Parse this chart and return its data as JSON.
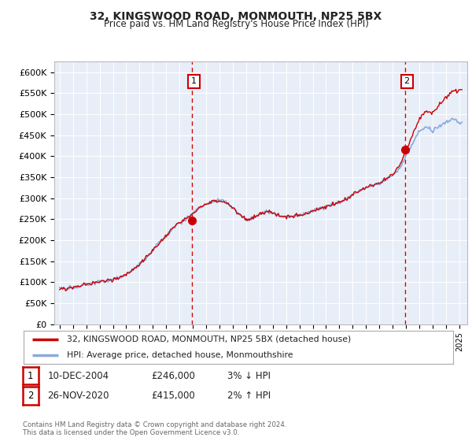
{
  "title1": "32, KINGSWOOD ROAD, MONMOUTH, NP25 5BX",
  "title2": "Price paid vs. HM Land Registry's House Price Index (HPI)",
  "bg_color": "#e8eef8",
  "ylim": [
    0,
    625000
  ],
  "yticks": [
    0,
    50000,
    100000,
    150000,
    200000,
    250000,
    300000,
    350000,
    400000,
    450000,
    500000,
    550000,
    600000
  ],
  "ytick_labels": [
    "£0",
    "£50K",
    "£100K",
    "£150K",
    "£200K",
    "£250K",
    "£300K",
    "£350K",
    "£400K",
    "£450K",
    "£500K",
    "£550K",
    "£600K"
  ],
  "sale1_date": 2004.94,
  "sale1_price": 246000,
  "sale2_date": 2020.91,
  "sale2_price": 415000,
  "legend_line1": "32, KINGSWOOD ROAD, MONMOUTH, NP25 5BX (detached house)",
  "legend_line2": "HPI: Average price, detached house, Monmouthshire",
  "annotation1_label": "1",
  "annotation1_date": "10-DEC-2004",
  "annotation1_price": "£246,000",
  "annotation1_hpi": "3% ↓ HPI",
  "annotation2_label": "2",
  "annotation2_date": "26-NOV-2020",
  "annotation2_price": "£415,000",
  "annotation2_hpi": "2% ↑ HPI",
  "footer": "Contains HM Land Registry data © Crown copyright and database right 2024.\nThis data is licensed under the Open Government Licence v3.0.",
  "price_line_color": "#cc0000",
  "hpi_line_color": "#88aadd",
  "sale_marker_color": "#cc0000",
  "vline_color": "#cc0000",
  "hpi_curve_points": [
    [
      1995.0,
      85000
    ],
    [
      1995.5,
      83000
    ],
    [
      1996.0,
      88000
    ],
    [
      1996.5,
      90000
    ],
    [
      1997.0,
      95000
    ],
    [
      1997.5,
      98000
    ],
    [
      1998.0,
      100000
    ],
    [
      1998.5,
      103000
    ],
    [
      1999.0,
      107000
    ],
    [
      1999.5,
      112000
    ],
    [
      2000.0,
      118000
    ],
    [
      2000.5,
      130000
    ],
    [
      2001.0,
      143000
    ],
    [
      2001.5,
      158000
    ],
    [
      2002.0,
      175000
    ],
    [
      2002.5,
      195000
    ],
    [
      2003.0,
      210000
    ],
    [
      2003.5,
      228000
    ],
    [
      2004.0,
      242000
    ],
    [
      2004.5,
      250000
    ],
    [
      2005.0,
      265000
    ],
    [
      2005.5,
      278000
    ],
    [
      2006.0,
      285000
    ],
    [
      2006.5,
      292000
    ],
    [
      2007.0,
      295000
    ],
    [
      2007.5,
      290000
    ],
    [
      2008.0,
      278000
    ],
    [
      2008.5,
      262000
    ],
    [
      2009.0,
      248000
    ],
    [
      2009.5,
      252000
    ],
    [
      2010.0,
      262000
    ],
    [
      2010.5,
      268000
    ],
    [
      2011.0,
      265000
    ],
    [
      2011.5,
      258000
    ],
    [
      2012.0,
      255000
    ],
    [
      2012.5,
      257000
    ],
    [
      2013.0,
      260000
    ],
    [
      2013.5,
      265000
    ],
    [
      2014.0,
      270000
    ],
    [
      2014.5,
      275000
    ],
    [
      2015.0,
      280000
    ],
    [
      2015.5,
      285000
    ],
    [
      2016.0,
      290000
    ],
    [
      2016.5,
      298000
    ],
    [
      2017.0,
      308000
    ],
    [
      2017.5,
      318000
    ],
    [
      2018.0,
      325000
    ],
    [
      2018.5,
      330000
    ],
    [
      2019.0,
      335000
    ],
    [
      2019.5,
      345000
    ],
    [
      2020.0,
      355000
    ],
    [
      2020.5,
      370000
    ],
    [
      2021.0,
      400000
    ],
    [
      2021.5,
      430000
    ],
    [
      2022.0,
      460000
    ],
    [
      2022.5,
      470000
    ],
    [
      2023.0,
      460000
    ],
    [
      2023.5,
      470000
    ],
    [
      2024.0,
      480000
    ],
    [
      2024.5,
      490000
    ],
    [
      2025.0,
      480000
    ]
  ]
}
